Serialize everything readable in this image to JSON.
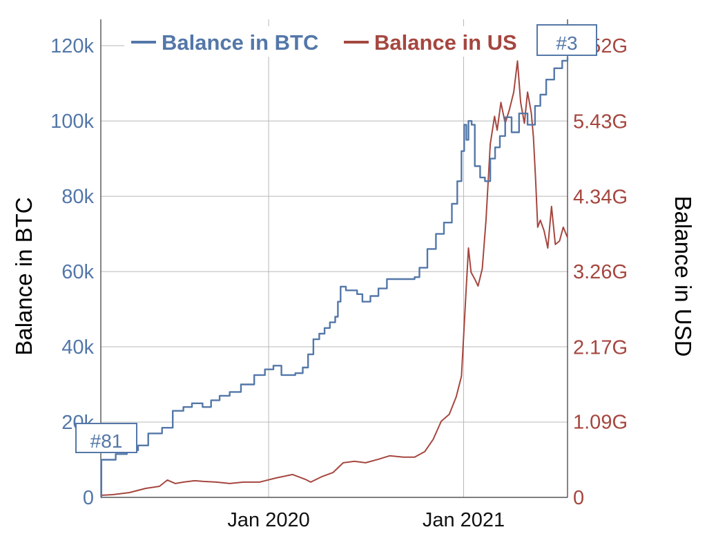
{
  "colors": {
    "btc": "#5377a8",
    "usd": "#a5463f",
    "grid": "#b8b8b8",
    "axis": "#333333"
  },
  "chart_data": {
    "type": "line",
    "x_axis": {
      "ticks": [
        "Jan 2020",
        "Jan 2021"
      ],
      "tick_dates": [
        "2020-01-01",
        "2021-01-01"
      ],
      "range": [
        "2019-02-20",
        "2021-07-15"
      ]
    },
    "y_left": {
      "label": "Balance in BTC",
      "ticks": [
        "0",
        "20k",
        "40k",
        "60k",
        "80k",
        "100k",
        "120k"
      ],
      "tick_values": [
        0,
        20000,
        40000,
        60000,
        80000,
        100000,
        120000
      ],
      "range": [
        0,
        127000
      ]
    },
    "y_right": {
      "label": "Balance in USD",
      "ticks": [
        "0",
        "1.09G",
        "2.17G",
        "3.26G",
        "4.34G",
        "5.43G",
        "6.52G"
      ],
      "tick_values": [
        0,
        1.09,
        2.17,
        3.26,
        4.34,
        5.43,
        6.52
      ],
      "range": [
        0,
        6.9
      ]
    },
    "grid": true,
    "legend_position": "top",
    "series": [
      {
        "name": "Balance in BTC",
        "axis": "left",
        "step": true,
        "points": [
          [
            "2019-02-20",
            0
          ],
          [
            "2019-02-21",
            10000
          ],
          [
            "2019-03-20",
            11500
          ],
          [
            "2019-04-10",
            12500
          ],
          [
            "2019-05-01",
            13800
          ],
          [
            "2019-05-20",
            17000
          ],
          [
            "2019-06-15",
            18500
          ],
          [
            "2019-07-05",
            23000
          ],
          [
            "2019-07-25",
            24000
          ],
          [
            "2019-08-10",
            25000
          ],
          [
            "2019-08-30",
            24000
          ],
          [
            "2019-09-15",
            25800
          ],
          [
            "2019-10-01",
            27000
          ],
          [
            "2019-10-20",
            28000
          ],
          [
            "2019-11-10",
            30000
          ],
          [
            "2019-12-05",
            32500
          ],
          [
            "2019-12-25",
            34000
          ],
          [
            "2020-01-10",
            35000
          ],
          [
            "2020-01-25",
            32500
          ],
          [
            "2020-02-20",
            33000
          ],
          [
            "2020-03-05",
            34500
          ],
          [
            "2020-03-15",
            38000
          ],
          [
            "2020-03-25",
            42000
          ],
          [
            "2020-04-05",
            43500
          ],
          [
            "2020-04-15",
            45000
          ],
          [
            "2020-04-25",
            46500
          ],
          [
            "2020-05-05",
            48000
          ],
          [
            "2020-05-10",
            52000
          ],
          [
            "2020-05-15",
            56000
          ],
          [
            "2020-05-25",
            55000
          ],
          [
            "2020-06-15",
            54000
          ],
          [
            "2020-06-25",
            52000
          ],
          [
            "2020-07-10",
            53500
          ],
          [
            "2020-07-25",
            55500
          ],
          [
            "2020-08-10",
            58000
          ],
          [
            "2020-09-05",
            58000
          ],
          [
            "2020-10-01",
            58500
          ],
          [
            "2020-10-10",
            61000
          ],
          [
            "2020-10-25",
            66000
          ],
          [
            "2020-11-10",
            70000
          ],
          [
            "2020-11-25",
            73000
          ],
          [
            "2020-12-10",
            78000
          ],
          [
            "2020-12-20",
            84000
          ],
          [
            "2020-12-28",
            92000
          ],
          [
            "2021-01-02",
            99000
          ],
          [
            "2021-01-06",
            95000
          ],
          [
            "2021-01-10",
            100000
          ],
          [
            "2021-01-16",
            99000
          ],
          [
            "2021-01-22",
            88000
          ],
          [
            "2021-02-01",
            85000
          ],
          [
            "2021-02-10",
            84000
          ],
          [
            "2021-02-20",
            90000
          ],
          [
            "2021-03-01",
            93000
          ],
          [
            "2021-03-10",
            96000
          ],
          [
            "2021-03-20",
            101000
          ],
          [
            "2021-04-01",
            97000
          ],
          [
            "2021-04-15",
            102000
          ],
          [
            "2021-05-01",
            99000
          ],
          [
            "2021-05-15",
            104000
          ],
          [
            "2021-05-25",
            107000
          ],
          [
            "2021-06-05",
            111000
          ],
          [
            "2021-06-20",
            114000
          ],
          [
            "2021-07-05",
            116000
          ],
          [
            "2021-07-15",
            117000
          ]
        ]
      },
      {
        "name": "Balance in USD",
        "axis": "right",
        "step": false,
        "points": [
          [
            "2019-02-20",
            0.03
          ],
          [
            "2019-03-15",
            0.04
          ],
          [
            "2019-04-15",
            0.07
          ],
          [
            "2019-05-15",
            0.13
          ],
          [
            "2019-06-10",
            0.16
          ],
          [
            "2019-06-25",
            0.25
          ],
          [
            "2019-07-10",
            0.2
          ],
          [
            "2019-07-25",
            0.22
          ],
          [
            "2019-08-15",
            0.24
          ],
          [
            "2019-09-01",
            0.23
          ],
          [
            "2019-09-25",
            0.22
          ],
          [
            "2019-10-20",
            0.2
          ],
          [
            "2019-11-15",
            0.22
          ],
          [
            "2019-12-15",
            0.22
          ],
          [
            "2020-01-15",
            0.28
          ],
          [
            "2020-02-15",
            0.33
          ],
          [
            "2020-03-10",
            0.26
          ],
          [
            "2020-03-20",
            0.22
          ],
          [
            "2020-04-10",
            0.3
          ],
          [
            "2020-05-01",
            0.36
          ],
          [
            "2020-05-20",
            0.5
          ],
          [
            "2020-06-10",
            0.52
          ],
          [
            "2020-07-01",
            0.5
          ],
          [
            "2020-07-25",
            0.55
          ],
          [
            "2020-08-15",
            0.6
          ],
          [
            "2020-09-10",
            0.58
          ],
          [
            "2020-10-01",
            0.58
          ],
          [
            "2020-10-20",
            0.66
          ],
          [
            "2020-11-05",
            0.84
          ],
          [
            "2020-11-20",
            1.1
          ],
          [
            "2020-12-05",
            1.2
          ],
          [
            "2020-12-18",
            1.45
          ],
          [
            "2020-12-28",
            1.75
          ],
          [
            "2021-01-05",
            2.9
          ],
          [
            "2021-01-10",
            3.6
          ],
          [
            "2021-01-15",
            3.25
          ],
          [
            "2021-01-22",
            3.15
          ],
          [
            "2021-01-28",
            3.05
          ],
          [
            "2021-02-05",
            3.3
          ],
          [
            "2021-02-12",
            4.0
          ],
          [
            "2021-02-20",
            5.1
          ],
          [
            "2021-02-28",
            5.5
          ],
          [
            "2021-03-05",
            5.3
          ],
          [
            "2021-03-12",
            5.7
          ],
          [
            "2021-03-20",
            5.4
          ],
          [
            "2021-03-28",
            5.6
          ],
          [
            "2021-04-05",
            5.85
          ],
          [
            "2021-04-12",
            6.3
          ],
          [
            "2021-04-18",
            5.7
          ],
          [
            "2021-04-25",
            5.4
          ],
          [
            "2021-05-01",
            5.85
          ],
          [
            "2021-05-08",
            5.55
          ],
          [
            "2021-05-12",
            5.2
          ],
          [
            "2021-05-16",
            4.6
          ],
          [
            "2021-05-20",
            3.9
          ],
          [
            "2021-05-25",
            4.0
          ],
          [
            "2021-06-01",
            3.85
          ],
          [
            "2021-06-08",
            3.6
          ],
          [
            "2021-06-15",
            4.2
          ],
          [
            "2021-06-22",
            3.65
          ],
          [
            "2021-06-30",
            3.7
          ],
          [
            "2021-07-07",
            3.9
          ],
          [
            "2021-07-15",
            3.75
          ]
        ]
      }
    ]
  },
  "legend": {
    "btc_label": "Balance in BTC",
    "usd_label": "Balance in US"
  },
  "rank_labels": {
    "start": "#81",
    "end": "#3"
  }
}
